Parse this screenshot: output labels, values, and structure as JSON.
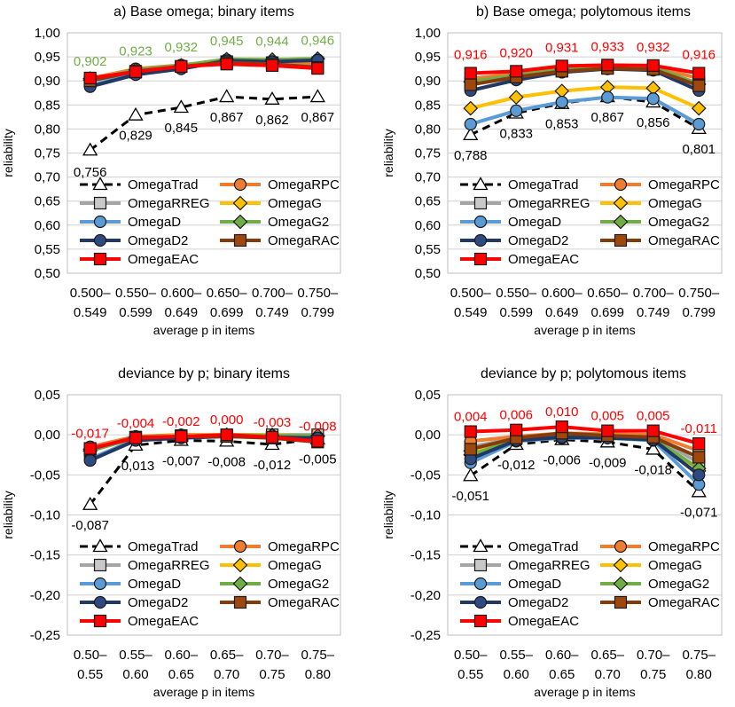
{
  "legend_order": [
    "OmegaTrad",
    "OmegaRPC",
    "OmegaRREG",
    "OmegaG",
    "OmegaD",
    "OmegaG2",
    "OmegaD2",
    "OmegaRAC",
    "OmegaEAC"
  ],
  "series_styles": {
    "OmegaTrad": {
      "color": "#000000",
      "marker": "triangle",
      "fill": "#ffffff",
      "dash": true
    },
    "OmegaRPC": {
      "color": "#ED7D31",
      "marker": "circle",
      "fill": "#ED7D31",
      "dash": false
    },
    "OmegaRREG": {
      "color": "#A5A5A5",
      "marker": "square",
      "fill": "#C8C8C8",
      "dash": false
    },
    "OmegaG": {
      "color": "#FFC000",
      "marker": "diamond",
      "fill": "#FFC000",
      "dash": false
    },
    "OmegaD": {
      "color": "#5B9BD5",
      "marker": "circle",
      "fill": "#5B9BD5",
      "dash": false
    },
    "OmegaG2": {
      "color": "#70AD47",
      "marker": "diamond",
      "fill": "#70AD47",
      "dash": false
    },
    "OmegaD2": {
      "color": "#203864",
      "marker": "circle",
      "fill": "#2F4A80",
      "dash": false
    },
    "OmegaRAC": {
      "color": "#843C0C",
      "marker": "square",
      "fill": "#9E480E",
      "dash": false
    },
    "OmegaEAC": {
      "color": "#FF0000",
      "marker": "square",
      "fill": "#FF0000",
      "dash": false
    }
  },
  "chart_data": [
    {
      "id": "a",
      "type": "line",
      "title": "a) Base omega; binary items",
      "xlabel": "average p in items",
      "ylabel": "reliability",
      "ylim": [
        0.5,
        1.0
      ],
      "yticks": [
        "0,50",
        "0,55",
        "0,60",
        "0,65",
        "0,70",
        "0,75",
        "0,80",
        "0,85",
        "0,90",
        "0,95",
        "1,00"
      ],
      "categories": [
        [
          "0.500–",
          "0.549"
        ],
        [
          "0.550–",
          "0.599"
        ],
        [
          "0.600–",
          "0.649"
        ],
        [
          "0.650–",
          "0.699"
        ],
        [
          "0.700–",
          "0.749"
        ],
        [
          "0.750–",
          "0.799"
        ]
      ],
      "series": [
        {
          "name": "OmegaTrad",
          "values": [
            0.756,
            0.829,
            0.845,
            0.867,
            0.862,
            0.867
          ]
        },
        {
          "name": "OmegaRPC",
          "values": [
            0.905,
            0.925,
            0.933,
            0.943,
            0.938,
            0.935
          ]
        },
        {
          "name": "OmegaRREG",
          "values": [
            0.9,
            0.918,
            0.93,
            0.94,
            0.938,
            0.938
          ]
        },
        {
          "name": "OmegaG",
          "values": [
            0.905,
            0.922,
            0.932,
            0.945,
            0.944,
            0.946
          ]
        },
        {
          "name": "OmegaD",
          "values": [
            0.89,
            0.915,
            0.926,
            0.944,
            0.94,
            0.944
          ]
        },
        {
          "name": "OmegaG2",
          "values": [
            0.902,
            0.923,
            0.932,
            0.945,
            0.944,
            0.946
          ]
        },
        {
          "name": "OmegaD2",
          "values": [
            0.888,
            0.913,
            0.925,
            0.942,
            0.94,
            0.943
          ]
        },
        {
          "name": "OmegaRAC",
          "values": [
            0.9,
            0.92,
            0.93,
            0.938,
            0.935,
            0.928
          ]
        },
        {
          "name": "OmegaEAC",
          "values": [
            0.906,
            0.919,
            0.93,
            0.935,
            0.932,
            0.926
          ]
        }
      ],
      "labels_top": {
        "color": "#70AD47",
        "values": [
          "0,902",
          "0,923",
          "0,932",
          "0,945",
          "0,944",
          "0,946"
        ]
      },
      "labels_bottom": {
        "color": "#000000",
        "values": [
          "0,756",
          "0,829",
          "0,845",
          "0,867",
          "0,862",
          "0,867"
        ]
      }
    },
    {
      "id": "b",
      "type": "line",
      "title": "b) Base omega; polytomous items",
      "xlabel": "average p in items",
      "ylabel": "reliability",
      "ylim": [
        0.5,
        1.0
      ],
      "yticks": [
        "0,50",
        "0,55",
        "0,60",
        "0,65",
        "0,70",
        "0,75",
        "0,80",
        "0,85",
        "0,90",
        "0,95",
        "1,00"
      ],
      "categories": [
        [
          "0.500–",
          "0.549"
        ],
        [
          "0.550–",
          "0.599"
        ],
        [
          "0.600–",
          "0.649"
        ],
        [
          "0.650–",
          "0.699"
        ],
        [
          "0.700–",
          "0.749"
        ],
        [
          "0.750–",
          "0.799"
        ]
      ],
      "series": [
        {
          "name": "OmegaTrad",
          "values": [
            0.788,
            0.833,
            0.853,
            0.867,
            0.856,
            0.801
          ]
        },
        {
          "name": "OmegaRPC",
          "values": [
            0.905,
            0.915,
            0.927,
            0.931,
            0.93,
            0.905
          ]
        },
        {
          "name": "OmegaRREG",
          "values": [
            0.895,
            0.91,
            0.922,
            0.928,
            0.926,
            0.895
          ]
        },
        {
          "name": "OmegaG",
          "values": [
            0.843,
            0.866,
            0.879,
            0.887,
            0.885,
            0.843
          ]
        },
        {
          "name": "OmegaD",
          "values": [
            0.81,
            0.838,
            0.856,
            0.866,
            0.863,
            0.81
          ]
        },
        {
          "name": "OmegaG2",
          "values": [
            0.898,
            0.912,
            0.924,
            0.931,
            0.929,
            0.893
          ]
        },
        {
          "name": "OmegaD2",
          "values": [
            0.88,
            0.902,
            0.918,
            0.925,
            0.922,
            0.88
          ]
        },
        {
          "name": "OmegaRAC",
          "values": [
            0.892,
            0.908,
            0.92,
            0.926,
            0.924,
            0.89
          ]
        },
        {
          "name": "OmegaEAC",
          "values": [
            0.916,
            0.92,
            0.931,
            0.933,
            0.932,
            0.916
          ]
        }
      ],
      "labels_top": {
        "color": "#FF0000",
        "values": [
          "0,916",
          "0,920",
          "0,931",
          "0,933",
          "0,932",
          "0,916"
        ]
      },
      "labels_bottom": {
        "color": "#000000",
        "values": [
          "0,788",
          "0,833",
          "0,853",
          "0,867",
          "0,856",
          "0,801"
        ]
      }
    },
    {
      "id": "c",
      "type": "line",
      "title": "deviance by p; binary items",
      "xlabel": "average p in items",
      "ylabel": "reliability",
      "ylim": [
        -0.25,
        0.05
      ],
      "yticks": [
        "-0,25",
        "-0,20",
        "-0,15",
        "-0,10",
        "-0,05",
        "0,00",
        "0,05"
      ],
      "categories": [
        [
          "0.50–",
          "0.55"
        ],
        [
          "0.55–",
          "0.60"
        ],
        [
          "0.60–",
          "0.65"
        ],
        [
          "0.65–",
          "0.70"
        ],
        [
          "0.70–",
          "0.75"
        ],
        [
          "0.75–",
          "0.80"
        ]
      ],
      "series": [
        {
          "name": "OmegaTrad",
          "values": [
            -0.087,
            -0.013,
            -0.007,
            -0.008,
            -0.012,
            -0.005
          ]
        },
        {
          "name": "OmegaRPC",
          "values": [
            -0.015,
            -0.002,
            0.0,
            0.0,
            -0.002,
            -0.006
          ]
        },
        {
          "name": "OmegaRREG",
          "values": [
            -0.02,
            -0.003,
            -0.001,
            0.0,
            0.0,
            0.0
          ]
        },
        {
          "name": "OmegaG",
          "values": [
            -0.018,
            -0.003,
            -0.001,
            0.0,
            0.0,
            -0.002
          ]
        },
        {
          "name": "OmegaD",
          "values": [
            -0.03,
            -0.006,
            -0.003,
            -0.001,
            -0.002,
            -0.003
          ]
        },
        {
          "name": "OmegaG2",
          "values": [
            -0.02,
            -0.004,
            -0.002,
            0.0,
            -0.001,
            -0.001
          ]
        },
        {
          "name": "OmegaD2",
          "values": [
            -0.032,
            -0.007,
            -0.004,
            -0.002,
            -0.003,
            -0.004
          ]
        },
        {
          "name": "OmegaRAC",
          "values": [
            -0.018,
            -0.003,
            -0.002,
            -0.002,
            -0.004,
            -0.009
          ]
        },
        {
          "name": "OmegaEAC",
          "values": [
            -0.017,
            -0.004,
            -0.002,
            0.0,
            -0.003,
            -0.008
          ]
        }
      ],
      "labels_top": {
        "color": "#FF0000",
        "values": [
          "-0,017",
          "-0,004",
          "-0,002",
          "0,000",
          "-0,003",
          "-0,008"
        ]
      },
      "labels_bottom": {
        "color": "#000000",
        "values": [
          "-0,087",
          "-0,013",
          "-0,007",
          "-0,008",
          "-0,012",
          "-0,005"
        ]
      }
    },
    {
      "id": "d",
      "type": "line",
      "title": "deviance by p; polytomous items",
      "xlabel": "average p in items",
      "ylabel": "reliability",
      "ylim": [
        -0.25,
        0.05
      ],
      "yticks": [
        "-0,25",
        "-0,20",
        "-0,15",
        "-0,10",
        "-0,05",
        "0,00",
        "0,05"
      ],
      "categories": [
        [
          "0.50–",
          "0.55"
        ],
        [
          "0.55–",
          "0.60"
        ],
        [
          "0.60–",
          "0.65"
        ],
        [
          "0.65–",
          "0.70"
        ],
        [
          "0.70–",
          "0.75"
        ],
        [
          "0.75–",
          "0.80"
        ]
      ],
      "series": [
        {
          "name": "OmegaTrad",
          "values": [
            -0.051,
            -0.012,
            -0.006,
            -0.009,
            -0.018,
            -0.071
          ]
        },
        {
          "name": "OmegaRPC",
          "values": [
            -0.008,
            -0.002,
            0.002,
            0.001,
            0.0,
            -0.02
          ]
        },
        {
          "name": "OmegaRREG",
          "values": [
            -0.015,
            -0.004,
            0.0,
            -0.001,
            -0.002,
            -0.035
          ]
        },
        {
          "name": "OmegaG",
          "values": [
            -0.02,
            -0.005,
            -0.002,
            -0.002,
            -0.004,
            -0.045
          ]
        },
        {
          "name": "OmegaD",
          "values": [
            -0.035,
            -0.008,
            -0.004,
            -0.004,
            -0.007,
            -0.062
          ]
        },
        {
          "name": "OmegaG2",
          "values": [
            -0.025,
            -0.006,
            -0.002,
            -0.003,
            -0.005,
            -0.042
          ]
        },
        {
          "name": "OmegaD2",
          "values": [
            -0.03,
            -0.007,
            -0.003,
            -0.004,
            -0.006,
            -0.05
          ]
        },
        {
          "name": "OmegaRAC",
          "values": [
            -0.018,
            -0.004,
            0.002,
            -0.001,
            -0.003,
            -0.028
          ]
        },
        {
          "name": "OmegaEAC",
          "values": [
            0.004,
            0.006,
            0.01,
            0.005,
            0.005,
            -0.011
          ]
        }
      ],
      "labels_top": {
        "color": "#FF0000",
        "values": [
          "0,004",
          "0,006",
          "0,010",
          "0,005",
          "0,005",
          "-0,011"
        ]
      },
      "labels_bottom": {
        "color": "#000000",
        "values": [
          "-0,051",
          "-0,012",
          "-0,006",
          "-0,009",
          "-0,018",
          "-0,071"
        ]
      }
    }
  ]
}
